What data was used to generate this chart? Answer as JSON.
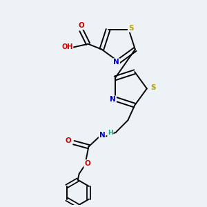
{
  "bg_color": "#edf2f7",
  "atom_colors": {
    "S": "#b8a000",
    "N": "#0000cc",
    "O": "#cc0000",
    "C": "#000000",
    "H": "#20a080"
  },
  "bond_color": "#000000",
  "bond_width": 1.4,
  "figsize": [
    3.0,
    3.0
  ],
  "dpi": 100
}
